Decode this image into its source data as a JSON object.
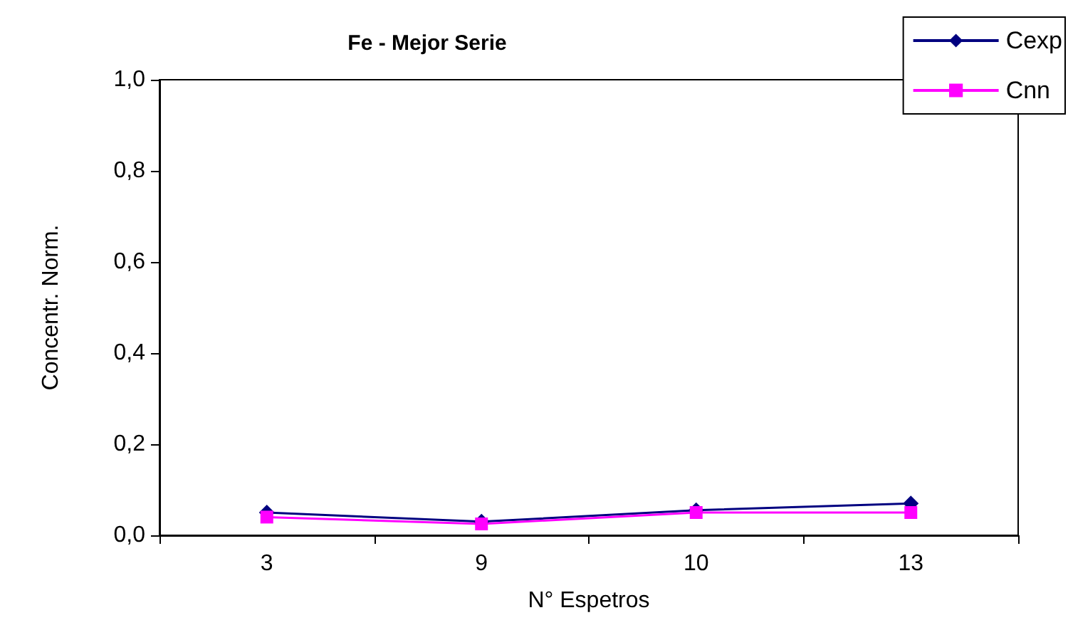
{
  "chart_data": {
    "type": "line",
    "title": "Fe - Mejor Serie",
    "xlabel": "N° Espetros",
    "ylabel": "Concentr. Norm.",
    "categories": [
      "3",
      "9",
      "10",
      "13"
    ],
    "series": [
      {
        "name": "Cexp",
        "color": "#000080",
        "values": [
          0.05,
          0.03,
          0.055,
          0.07
        ],
        "marker": "diamond"
      },
      {
        "name": "Cnn",
        "color": "#ff00ff",
        "values": [
          0.04,
          0.025,
          0.05,
          0.05
        ],
        "marker": "square"
      }
    ],
    "ylim": [
      0,
      1
    ],
    "yticks": [
      {
        "value": 0,
        "label": "0,0"
      },
      {
        "value": 0.2,
        "label": "0,2"
      },
      {
        "value": 0.4,
        "label": "0,4"
      },
      {
        "value": 0.6,
        "label": "0,6"
      },
      {
        "value": 0.8,
        "label": "0,8"
      },
      {
        "value": 1,
        "label": "1,0"
      }
    ],
    "grid": false,
    "legend": "top right"
  }
}
